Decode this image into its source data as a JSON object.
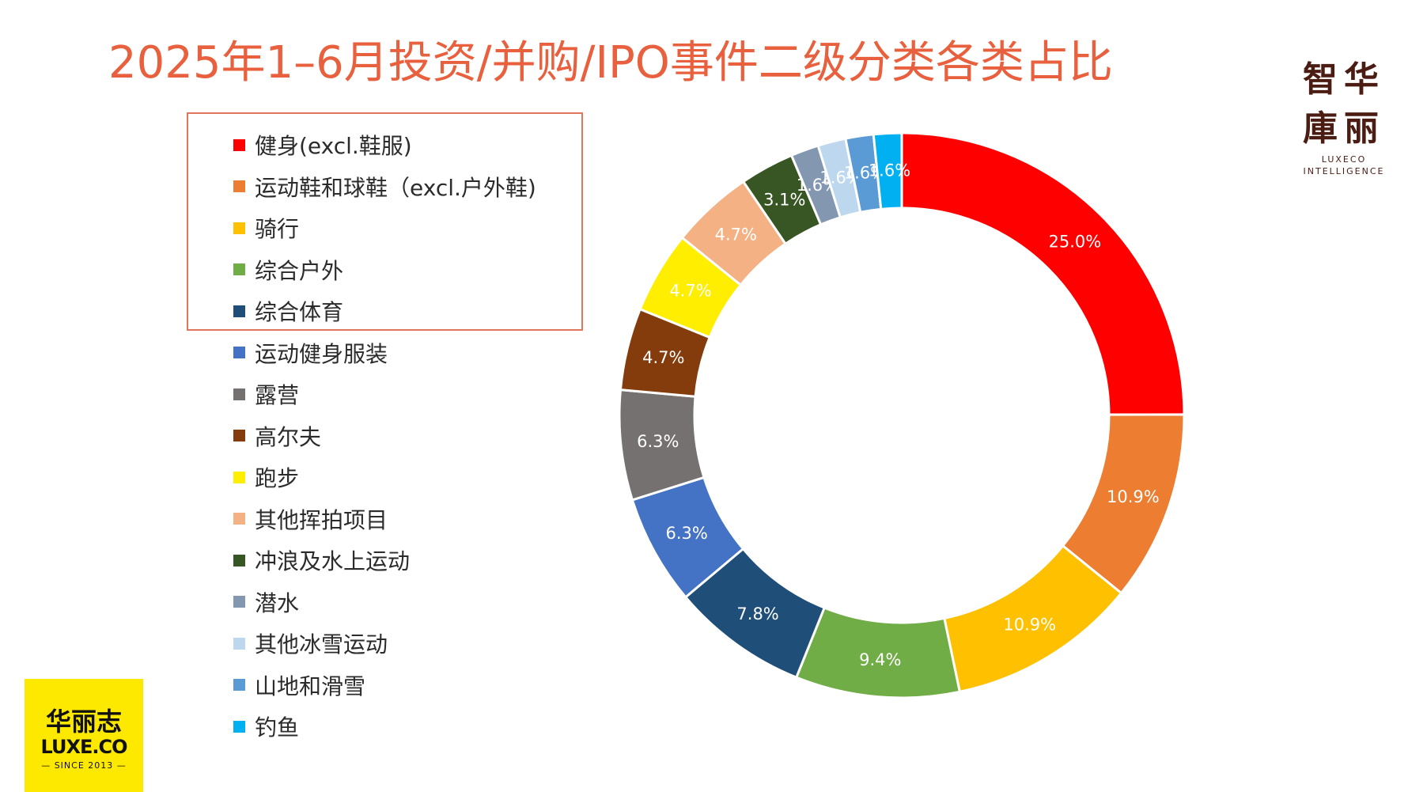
{
  "title": "2025年1–6月投资/并购/IPO事件二级分类各类占比",
  "brand_top_right": {
    "line1": "智华",
    "line2": "庫丽",
    "sub1": "LUXECO",
    "sub2": "INTELLIGENCE"
  },
  "brand_bottom_left": {
    "line1": "华丽志",
    "line2": "LUXE.CO",
    "line3": "— SINCE 2013 —"
  },
  "chart_data": {
    "type": "pie",
    "variant": "donut",
    "start": "12 o'clock",
    "direction": "clockwise",
    "legend_position": "left",
    "labels": [
      "健身(excl.鞋服)",
      "运动鞋和球鞋（excl.户外鞋)",
      "骑行",
      "综合户外",
      "综合体育",
      "运动健身服装",
      "露营",
      "高尔夫",
      "跑步",
      "其他挥拍项目",
      "冲浪及水上运动",
      "潜水",
      "其他冰雪运动",
      "山地和滑雪",
      "钓鱼"
    ],
    "values": [
      25.0,
      10.9,
      10.9,
      9.4,
      7.8,
      6.3,
      6.3,
      4.7,
      4.7,
      4.7,
      3.1,
      1.6,
      1.6,
      1.6,
      1.6
    ],
    "data_labels": [
      "25.0%",
      "10.9%",
      "10.9%",
      "9.4%",
      "7.8%",
      "6.3%",
      "6.3%",
      "4.7%",
      "4.7%",
      "4.7%",
      "3.1%",
      "1.6%",
      "1.6%",
      "1.6%",
      "1.6%"
    ],
    "colors": [
      "#ff0000",
      "#ed7d31",
      "#ffc000",
      "#70ad47",
      "#1f4e79",
      "#4472c4",
      "#767171",
      "#843c0c",
      "#ffee00",
      "#f4b183",
      "#375623",
      "#8497b0",
      "#bdd7ee",
      "#5b9bd5",
      "#00b0f0"
    ],
    "highlight_box_items": 5
  }
}
